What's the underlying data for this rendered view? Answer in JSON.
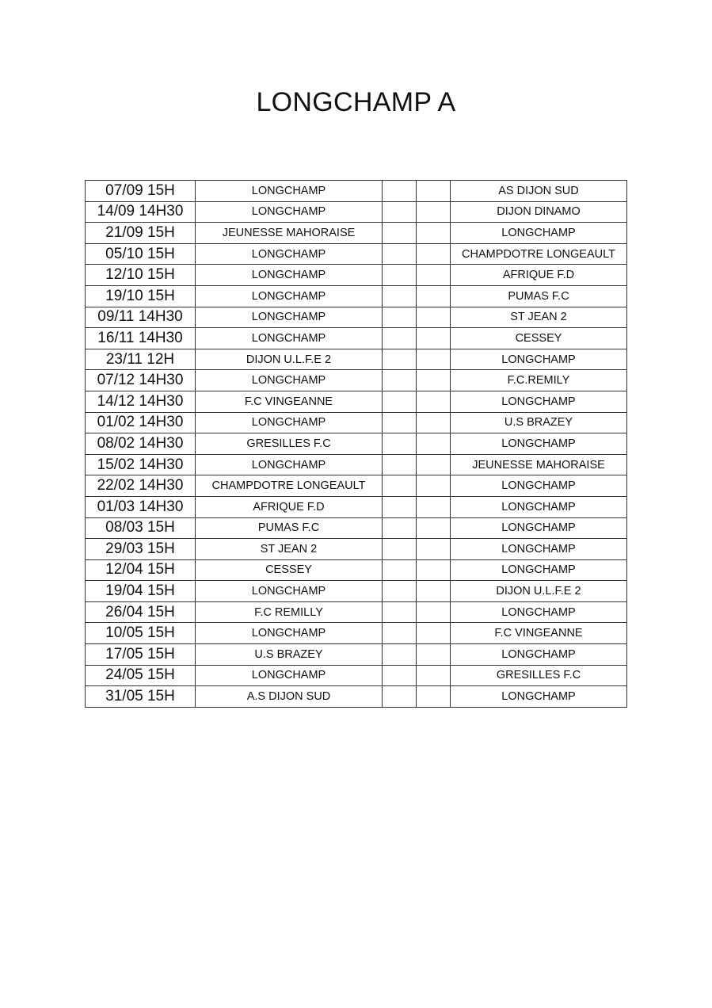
{
  "title": "LONGCHAMP A",
  "matches": [
    {
      "date": "07/09 15H",
      "home": "LONGCHAMP",
      "away": "AS DIJON SUD"
    },
    {
      "date": "14/09 14H30",
      "home": "LONGCHAMP",
      "away": "DIJON DINAMO"
    },
    {
      "date": "21/09 15H",
      "home": "JEUNESSE MAHORAISE",
      "away": "LONGCHAMP"
    },
    {
      "date": "05/10 15H",
      "home": "LONGCHAMP",
      "away": "CHAMPDOTRE LONGEAULT"
    },
    {
      "date": "12/10 15H",
      "home": "LONGCHAMP",
      "away": "AFRIQUE F.D"
    },
    {
      "date": "19/10 15H",
      "home": "LONGCHAMP",
      "away": "PUMAS F.C"
    },
    {
      "date": "09/11 14H30",
      "home": "LONGCHAMP",
      "away": "ST JEAN 2"
    },
    {
      "date": "16/11 14H30",
      "home": "LONGCHAMP",
      "away": "CESSEY"
    },
    {
      "date": "23/11 12H",
      "home": "DIJON U.L.F.E 2",
      "away": "LONGCHAMP"
    },
    {
      "date": "07/12 14H30",
      "home": "LONGCHAMP",
      "away": "F.C.REMILY"
    },
    {
      "date": "14/12 14H30",
      "home": "F.C VINGEANNE",
      "away": "LONGCHAMP"
    },
    {
      "date": "01/02 14H30",
      "home": "LONGCHAMP",
      "away": "U.S BRAZEY"
    },
    {
      "date": "08/02 14H30",
      "home": "GRESILLES F.C",
      "away": "LONGCHAMP"
    },
    {
      "date": "15/02 14H30",
      "home": "LONGCHAMP",
      "away": "JEUNESSE MAHORAISE"
    },
    {
      "date": "22/02 14H30",
      "home": "CHAMPDOTRE LONGEAULT",
      "away": "LONGCHAMP"
    },
    {
      "date": "01/03 14H30",
      "home": "AFRIQUE F.D",
      "away": "LONGCHAMP"
    },
    {
      "date": "08/03 15H",
      "home": "PUMAS F.C",
      "away": "LONGCHAMP"
    },
    {
      "date": "29/03 15H",
      "home": "ST JEAN 2",
      "away": "LONGCHAMP"
    },
    {
      "date": "12/04 15H",
      "home": "CESSEY",
      "away": "LONGCHAMP"
    },
    {
      "date": "19/04 15H",
      "home": "LONGCHAMP",
      "away": "DIJON U.L.F.E 2"
    },
    {
      "date": "26/04 15H",
      "home": "F.C REMILLY",
      "away": "LONGCHAMP"
    },
    {
      "date": "10/05 15H",
      "home": "LONGCHAMP",
      "away": "F.C VINGEANNE"
    },
    {
      "date": "17/05 15H",
      "home": "U.S BRAZEY",
      "away": "LONGCHAMP"
    },
    {
      "date": "24/05 15H",
      "home": "LONGCHAMP",
      "away": "GRESILLES F.C"
    },
    {
      "date": "31/05 15H",
      "home": "A.S DIJON SUD",
      "away": "LONGCHAMP"
    }
  ]
}
